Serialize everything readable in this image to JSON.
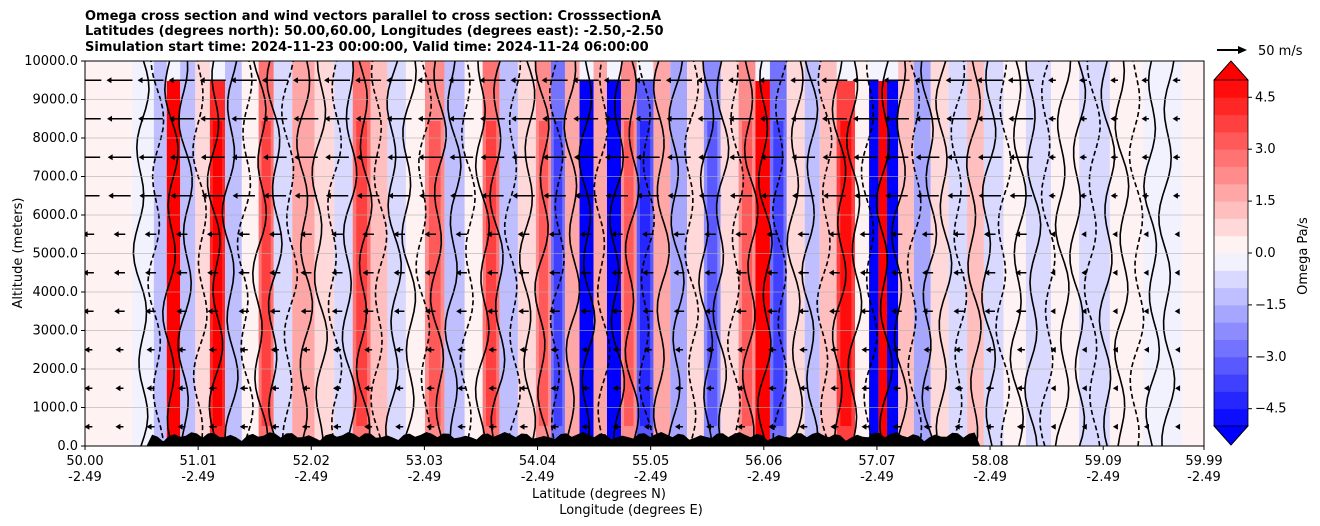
{
  "title": {
    "line1": "Omega cross section and wind vectors parallel to cross section: CrosssectionA",
    "line2": "Latitudes (degrees north): 50.00,60.00, Longitudes (degrees east): -2.50,-2.50",
    "line3": "Simulation start time: 2024-11-23 00:00:00, Valid time: 2024-11-24 06:00:00"
  },
  "chart_data": {
    "type": "heatmap",
    "xlabel_lat": "Latitude (degrees N)",
    "xlabel_lon": "Longitude (degrees E)",
    "ylabel": "Altitude (meters)",
    "xlim": [
      50.0,
      59.99
    ],
    "ylim": [
      0,
      10000
    ],
    "x_ticks": [
      {
        "lat": "50.00",
        "lon": "-2.49",
        "value": 50.0
      },
      {
        "lat": "51.01",
        "lon": "-2.49",
        "value": 51.01
      },
      {
        "lat": "52.02",
        "lon": "-2.49",
        "value": 52.02
      },
      {
        "lat": "53.03",
        "lon": "-2.49",
        "value": 53.03
      },
      {
        "lat": "54.04",
        "lon": "-2.49",
        "value": 54.04
      },
      {
        "lat": "55.05",
        "lon": "-2.49",
        "value": 55.05
      },
      {
        "lat": "56.06",
        "lon": "-2.49",
        "value": 56.06
      },
      {
        "lat": "57.07",
        "lon": "-2.49",
        "value": 57.07
      },
      {
        "lat": "58.08",
        "lon": "-2.49",
        "value": 58.08
      },
      {
        "lat": "59.09",
        "lon": "-2.49",
        "value": 59.09
      },
      {
        "lat": "59.99",
        "lon": "-2.49",
        "value": 59.99
      }
    ],
    "y_ticks": [
      {
        "label": "0.0",
        "value": 0
      },
      {
        "label": "1000.0",
        "value": 1000
      },
      {
        "label": "2000.0",
        "value": 2000
      },
      {
        "label": "3000.0",
        "value": 3000
      },
      {
        "label": "4000.0",
        "value": 4000
      },
      {
        "label": "5000.0",
        "value": 5000
      },
      {
        "label": "6000.0",
        "value": 6000
      },
      {
        "label": "7000.0",
        "value": 7000
      },
      {
        "label": "8000.0",
        "value": 8000
      },
      {
        "label": "9000.0",
        "value": 9000
      },
      {
        "label": "10000.0",
        "value": 10000
      }
    ],
    "grid": true,
    "colorbar": {
      "label": "Omega Pa/s",
      "min": -5.0,
      "max": 5.0,
      "extend": "both",
      "ticks": [
        {
          "label": "4.5",
          "value": 4.5
        },
        {
          "label": "3.0",
          "value": 3.0
        },
        {
          "label": "1.5",
          "value": 1.5
        },
        {
          "label": "0.0",
          "value": 0.0
        },
        {
          "label": "−1.5",
          "value": -1.5
        },
        {
          "label": "−3.0",
          "value": -3.0
        },
        {
          "label": "−4.5",
          "value": -4.5
        }
      ],
      "levels": [
        -5.0,
        -4.5,
        -4.0,
        -3.5,
        -3.0,
        -2.5,
        -2.0,
        -1.5,
        -1.0,
        -0.5,
        0.0,
        0.5,
        1.0,
        1.5,
        2.0,
        2.5,
        3.0,
        3.5,
        4.0,
        4.5,
        5.0
      ],
      "colormap": "bwr",
      "low_color": "#0000ff",
      "high_color": "#ff0000"
    },
    "vector_key": {
      "label": "50 m/s"
    },
    "omega_bands": [
      {
        "lat": 50.0,
        "omega": 0.3
      },
      {
        "lat": 50.3,
        "omega": 0.2
      },
      {
        "lat": 50.55,
        "omega": -0.5
      },
      {
        "lat": 50.68,
        "omega": -1.2
      },
      {
        "lat": 50.78,
        "omega": 5.0
      },
      {
        "lat": 50.92,
        "omega": -1.3
      },
      {
        "lat": 51.05,
        "omega": 0.5
      },
      {
        "lat": 51.18,
        "omega": 4.3
      },
      {
        "lat": 51.32,
        "omega": -1.5
      },
      {
        "lat": 51.48,
        "omega": 0.3
      },
      {
        "lat": 51.62,
        "omega": 2.8
      },
      {
        "lat": 51.75,
        "omega": -1.0
      },
      {
        "lat": 51.95,
        "omega": 1.5
      },
      {
        "lat": 52.15,
        "omega": 0.6
      },
      {
        "lat": 52.3,
        "omega": -0.8
      },
      {
        "lat": 52.48,
        "omega": 2.6
      },
      {
        "lat": 52.62,
        "omega": 1.0
      },
      {
        "lat": 52.78,
        "omega": -0.6
      },
      {
        "lat": 52.95,
        "omega": 0.2
      },
      {
        "lat": 53.12,
        "omega": 2.0
      },
      {
        "lat": 53.3,
        "omega": -1.2
      },
      {
        "lat": 53.48,
        "omega": 0.4
      },
      {
        "lat": 53.62,
        "omega": 2.6
      },
      {
        "lat": 53.78,
        "omega": -1.4
      },
      {
        "lat": 53.95,
        "omega": 0.8
      },
      {
        "lat": 54.1,
        "omega": 2.2
      },
      {
        "lat": 54.22,
        "omega": -2.6
      },
      {
        "lat": 54.35,
        "omega": 1.8
      },
      {
        "lat": 54.48,
        "omega": -5.0
      },
      {
        "lat": 54.6,
        "omega": 1.5
      },
      {
        "lat": 54.72,
        "omega": -5.0
      },
      {
        "lat": 54.85,
        "omega": 2.4
      },
      {
        "lat": 55.0,
        "omega": -3.2
      },
      {
        "lat": 55.15,
        "omega": 1.6
      },
      {
        "lat": 55.3,
        "omega": -1.6
      },
      {
        "lat": 55.45,
        "omega": 0.6
      },
      {
        "lat": 55.6,
        "omega": -2.2
      },
      {
        "lat": 55.75,
        "omega": 0.8
      },
      {
        "lat": 55.92,
        "omega": 2.4
      },
      {
        "lat": 56.05,
        "omega": 5.0
      },
      {
        "lat": 56.18,
        "omega": -3.0
      },
      {
        "lat": 56.35,
        "omega": 0.6
      },
      {
        "lat": 56.5,
        "omega": -1.4
      },
      {
        "lat": 56.62,
        "omega": 1.0
      },
      {
        "lat": 56.8,
        "omega": 3.8
      },
      {
        "lat": 56.95,
        "omega": 0.4
      },
      {
        "lat": 57.05,
        "omega": -5.0
      },
      {
        "lat": 57.12,
        "omega": 5.0
      },
      {
        "lat": 57.2,
        "omega": -5.0
      },
      {
        "lat": 57.32,
        "omega": 1.2
      },
      {
        "lat": 57.48,
        "omega": -1.6
      },
      {
        "lat": 57.62,
        "omega": 0.8
      },
      {
        "lat": 57.8,
        "omega": -0.8
      },
      {
        "lat": 57.95,
        "omega": 1.4
      },
      {
        "lat": 58.1,
        "omega": -0.6
      },
      {
        "lat": 58.3,
        "omega": 0.4
      },
      {
        "lat": 58.5,
        "omega": -1.0
      },
      {
        "lat": 58.75,
        "omega": 0.3
      },
      {
        "lat": 59.0,
        "omega": -0.6
      },
      {
        "lat": 59.3,
        "omega": 0.2
      },
      {
        "lat": 59.6,
        "omega": -0.3
      },
      {
        "lat": 59.99,
        "omega": 0.0
      }
    ]
  }
}
